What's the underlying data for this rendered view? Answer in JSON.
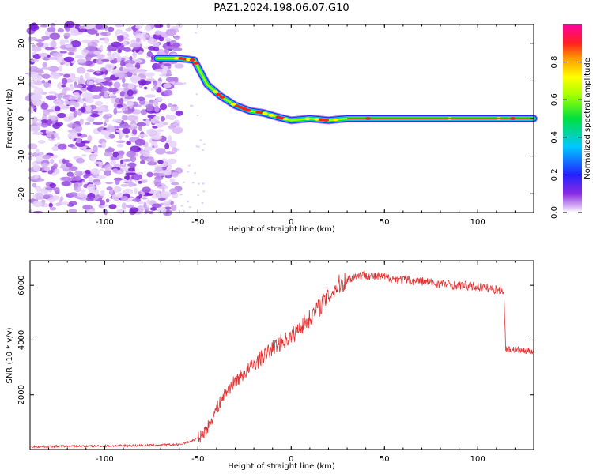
{
  "title": "PAZ1.2024.198.06.07.G10",
  "chart_data": [
    {
      "type": "heatmap",
      "xlabel": "Height of straight line (km)",
      "ylabel": "Frequency (Hz)",
      "xlim": [
        -140,
        130
      ],
      "ylim": [
        -25,
        25
      ],
      "xticks": [
        -100,
        -50,
        0,
        50,
        100
      ],
      "yticks": [
        -20,
        -10,
        0,
        10,
        20
      ],
      "colorbar": {
        "label": "Normalized spectral amplitude",
        "range": [
          0,
          1
        ],
        "ticks": [
          0.0,
          0.2,
          0.4,
          0.6,
          0.8
        ],
        "colormap": "rainbow"
      },
      "ridge": {
        "x": [
          -72,
          -60,
          -52,
          -45,
          -38,
          -30,
          -22,
          -15,
          -8,
          0,
          10,
          20,
          30,
          60,
          100,
          130
        ],
        "frequency": [
          16,
          16,
          15.5,
          9,
          6,
          3.5,
          2,
          1.5,
          0.5,
          -0.5,
          0,
          -0.5,
          0,
          0,
          0,
          0
        ]
      },
      "noise_region_x": [
        -140,
        -60
      ]
    },
    {
      "type": "line",
      "xlabel": "Height of straight line (km)",
      "ylabel": "SNR (10 * v/v)",
      "xlim": [
        -140,
        130
      ],
      "ylim": [
        0,
        6900
      ],
      "xticks": [
        -100,
        -50,
        0,
        50,
        100
      ],
      "yticks": [
        2000,
        4000,
        6000
      ],
      "series": [
        {
          "color": "#e03030",
          "x": [
            -140,
            -120,
            -100,
            -80,
            -60,
            -52,
            -48,
            -44,
            -40,
            -35,
            -30,
            -25,
            -20,
            -15,
            -10,
            -5,
            0,
            5,
            10,
            15,
            20,
            25,
            30,
            35,
            40,
            45,
            50,
            55,
            60,
            70,
            80,
            90,
            100,
            105,
            110,
            114,
            115,
            116,
            120,
            125,
            130
          ],
          "y": [
            100,
            120,
            130,
            150,
            180,
            350,
            500,
            900,
            1500,
            2100,
            2500,
            2800,
            3100,
            3400,
            3700,
            3950,
            4100,
            4500,
            4800,
            5200,
            5600,
            6000,
            6200,
            6350,
            6400,
            6300,
            6300,
            6250,
            6200,
            6150,
            6050,
            6000,
            5950,
            5900,
            5850,
            5800,
            3700,
            3650,
            3650,
            3600,
            3600
          ]
        }
      ]
    }
  ]
}
